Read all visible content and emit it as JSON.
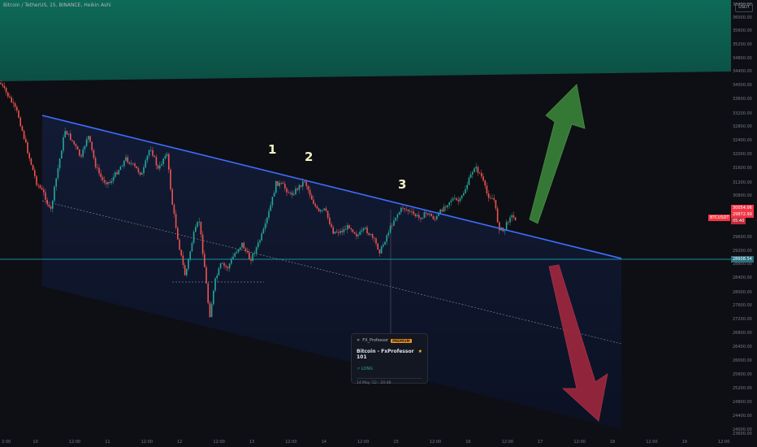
{
  "legend": {
    "text": "Bitcoin / TetherUS, 15, BINANCE, Heikin Ashi"
  },
  "currency": "USDT",
  "price_axis": {
    "labels": [
      "36400.00",
      "36000.00",
      "35600.00",
      "35200.00",
      "34800.00",
      "34400.00",
      "34000.00",
      "33600.00",
      "33200.00",
      "32800.00",
      "32400.00",
      "32000.00",
      "31600.00",
      "31200.00",
      "30800.00",
      "30400.00",
      "29600.00",
      "29200.00",
      "28800.00",
      "28400.00",
      "28000.00",
      "27600.00",
      "27200.00",
      "26800.00",
      "26400.00",
      "26000.00",
      "25600.00",
      "25200.00",
      "24800.00",
      "24400.00",
      "24000.00",
      "23600.00"
    ],
    "ticker_tag": "BTCUSDT",
    "current_price": "30054.06",
    "current_price_2": "29872.99",
    "countdown": "05:40",
    "line_price": "28608.54"
  },
  "time_axis": {
    "labels": [
      "2:00",
      "10",
      "12:00",
      "11",
      "12:00",
      "12",
      "12:00",
      "13",
      "12:00",
      "14",
      "12:00",
      "15",
      "12:00",
      "16",
      "12:00",
      "17",
      "12:00",
      "18",
      "12:00",
      "19",
      "12:00"
    ]
  },
  "wave_labels": [
    "1",
    "2",
    "3"
  ],
  "idea_card": {
    "author": "FX_Professor",
    "badge": "PREMIUM",
    "title": "Bitcoin - FxProfessor 101",
    "direction": "LONG",
    "date": "14 May '22 - 20:48"
  },
  "colors": {
    "background": "#0d0f14",
    "green_zone": "#0f6b5a",
    "channel_fill": "#0e1a3a",
    "trendline": "#3f6dff",
    "horizontal_line": "#21b6c8",
    "candle_up": "#26a69a",
    "candle_down": "#ef5350",
    "arrow_up": "#3d8a3a",
    "arrow_down": "#a8283f",
    "price_tag_red": "#f23645",
    "price_tag_teal": "#2a6f7f"
  }
}
